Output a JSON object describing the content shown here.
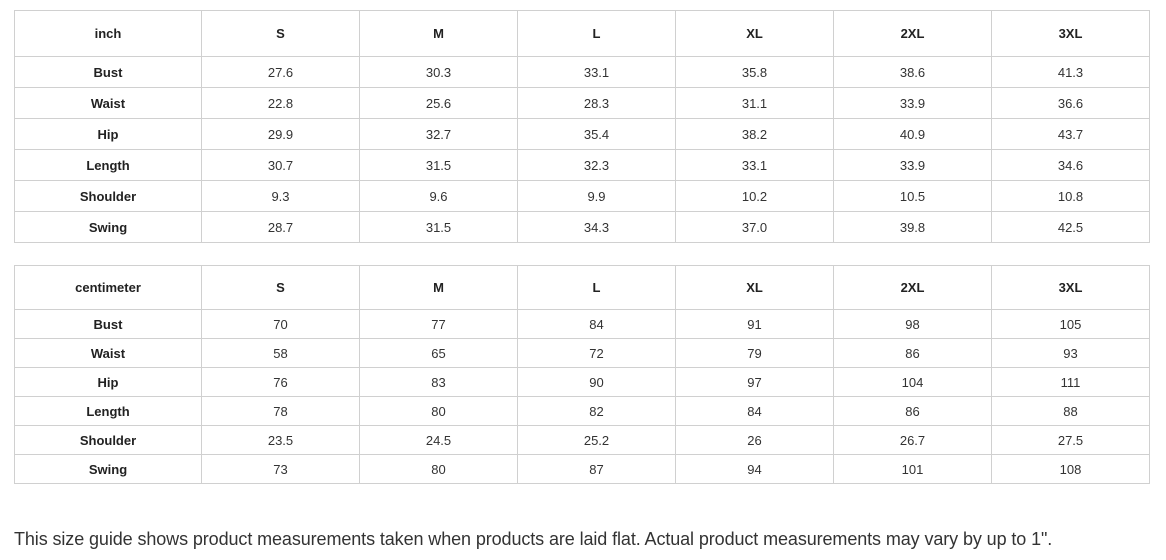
{
  "tables": [
    {
      "unit": "inch",
      "sizes": [
        "S",
        "M",
        "L",
        "XL",
        "2XL",
        "3XL"
      ],
      "rows": [
        {
          "label": "Bust",
          "values": [
            "27.6",
            "30.3",
            "33.1",
            "35.8",
            "38.6",
            "41.3"
          ]
        },
        {
          "label": "Waist",
          "values": [
            "22.8",
            "25.6",
            "28.3",
            "31.1",
            "33.9",
            "36.6"
          ]
        },
        {
          "label": "Hip",
          "values": [
            "29.9",
            "32.7",
            "35.4",
            "38.2",
            "40.9",
            "43.7"
          ]
        },
        {
          "label": "Length",
          "values": [
            "30.7",
            "31.5",
            "32.3",
            "33.1",
            "33.9",
            "34.6"
          ]
        },
        {
          "label": "Shoulder",
          "values": [
            "9.3",
            "9.6",
            "9.9",
            "10.2",
            "10.5",
            "10.8"
          ]
        },
        {
          "label": "Swing",
          "values": [
            "28.7",
            "31.5",
            "34.3",
            "37.0",
            "39.8",
            "42.5"
          ]
        }
      ]
    },
    {
      "unit": "centimeter",
      "sizes": [
        "S",
        "M",
        "L",
        "XL",
        "2XL",
        "3XL"
      ],
      "rows": [
        {
          "label": "Bust",
          "values": [
            "70",
            "77",
            "84",
            "91",
            "98",
            "105"
          ]
        },
        {
          "label": "Waist",
          "values": [
            "58",
            "65",
            "72",
            "79",
            "86",
            "93"
          ]
        },
        {
          "label": "Hip",
          "values": [
            "76",
            "83",
            "90",
            "97",
            "104",
            "111"
          ]
        },
        {
          "label": "Length",
          "values": [
            "78",
            "80",
            "82",
            "84",
            "86",
            "88"
          ]
        },
        {
          "label": "Shoulder",
          "values": [
            "23.5",
            "24.5",
            "25.2",
            "26",
            "26.7",
            "27.5"
          ]
        },
        {
          "label": "Swing",
          "values": [
            "73",
            "80",
            "87",
            "94",
            "101",
            "108"
          ]
        }
      ]
    }
  ],
  "note": "This size guide shows product measurements taken when products are laid flat. Actual product measurements may vary by up to 1\"."
}
